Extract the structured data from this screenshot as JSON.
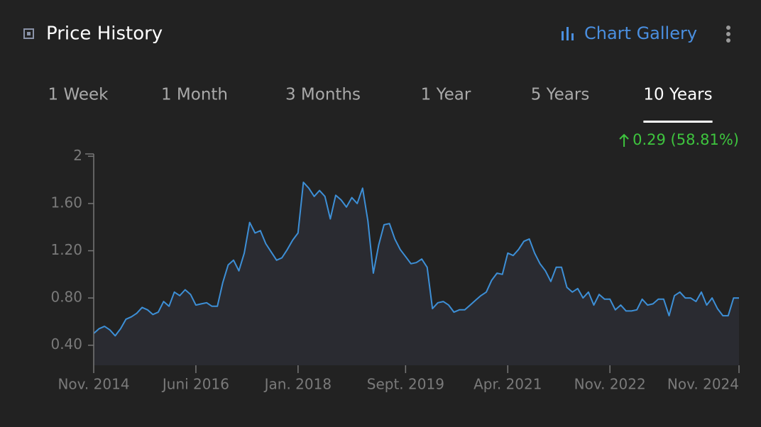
{
  "header": {
    "title": "Price History",
    "link": "Chart Gallery"
  },
  "tabs": [
    "1 Week",
    "1 Month",
    "3 Months",
    "1 Year",
    "5 Years",
    "10 Years"
  ],
  "selected_tab": 5,
  "change": "0.29 (58.81%)",
  "chart_data": {
    "type": "line",
    "color": "#3d8fd6",
    "x": [
      "2014-11",
      "2014-12",
      "2015-01",
      "2015-02",
      "2015-03",
      "2015-04",
      "2015-05",
      "2015-06",
      "2015-07",
      "2015-08",
      "2015-09",
      "2015-10",
      "2015-11",
      "2015-12",
      "2016-01",
      "2016-02",
      "2016-03",
      "2016-04",
      "2016-05",
      "2016-06",
      "2016-07",
      "2016-08",
      "2016-09",
      "2016-10",
      "2016-11",
      "2016-12",
      "2017-01",
      "2017-02",
      "2017-03",
      "2017-04",
      "2017-05",
      "2017-06",
      "2017-07",
      "2017-08",
      "2017-09",
      "2017-10",
      "2017-11",
      "2017-12",
      "2018-01",
      "2018-02",
      "2018-03",
      "2018-04",
      "2018-05",
      "2018-06",
      "2018-07",
      "2018-08",
      "2018-09",
      "2018-10",
      "2018-11",
      "2018-12",
      "2019-01",
      "2019-02",
      "2019-03",
      "2019-04",
      "2019-05",
      "2019-06",
      "2019-07",
      "2019-08",
      "2019-09",
      "2019-10",
      "2019-11",
      "2019-12",
      "2020-01",
      "2020-02",
      "2020-03",
      "2020-04",
      "2020-05",
      "2020-06",
      "2020-07",
      "2020-08",
      "2020-09",
      "2020-10",
      "2020-11",
      "2020-12",
      "2021-01",
      "2021-02",
      "2021-03",
      "2021-04",
      "2021-05",
      "2021-06",
      "2021-07",
      "2021-08",
      "2021-09",
      "2021-10",
      "2021-11",
      "2021-12",
      "2022-01",
      "2022-02",
      "2022-03",
      "2022-04",
      "2022-05",
      "2022-06",
      "2022-07",
      "2022-08",
      "2022-09",
      "2022-10",
      "2022-11",
      "2022-12",
      "2023-01",
      "2023-02",
      "2023-03",
      "2023-04",
      "2023-05",
      "2023-06",
      "2023-07",
      "2023-08",
      "2023-09",
      "2023-10",
      "2023-11",
      "2023-12",
      "2024-01",
      "2024-02",
      "2024-03",
      "2024-04",
      "2024-05",
      "2024-06",
      "2024-07",
      "2024-08",
      "2024-09",
      "2024-10",
      "2024-11"
    ],
    "values": [
      0.5,
      0.54,
      0.56,
      0.53,
      0.48,
      0.54,
      0.62,
      0.64,
      0.67,
      0.72,
      0.7,
      0.66,
      0.68,
      0.77,
      0.73,
      0.85,
      0.82,
      0.87,
      0.83,
      0.74,
      0.75,
      0.76,
      0.73,
      0.73,
      0.93,
      1.08,
      1.12,
      1.03,
      1.18,
      1.44,
      1.35,
      1.37,
      1.26,
      1.19,
      1.12,
      1.14,
      1.21,
      1.29,
      1.35,
      1.78,
      1.73,
      1.66,
      1.71,
      1.66,
      1.47,
      1.67,
      1.63,
      1.57,
      1.65,
      1.6,
      1.73,
      1.45,
      1.01,
      1.25,
      1.42,
      1.43,
      1.3,
      1.21,
      1.15,
      1.09,
      1.1,
      1.13,
      1.06,
      0.71,
      0.76,
      0.77,
      0.74,
      0.68,
      0.7,
      0.7,
      0.74,
      0.78,
      0.82,
      0.85,
      0.95,
      1.01,
      1.0,
      1.18,
      1.16,
      1.21,
      1.28,
      1.3,
      1.18,
      1.09,
      1.03,
      0.94,
      1.06,
      1.06,
      0.89,
      0.85,
      0.88,
      0.8,
      0.85,
      0.74,
      0.83,
      0.79,
      0.79,
      0.7,
      0.74,
      0.69,
      0.69,
      0.7,
      0.79,
      0.74,
      0.75,
      0.79,
      0.79,
      0.65,
      0.82,
      0.85,
      0.8,
      0.8,
      0.77,
      0.85,
      0.74,
      0.8,
      0.71,
      0.65,
      0.65,
      0.8,
      0.8
    ],
    "xlim": [
      "2014-11",
      "2024-11"
    ],
    "xticks": [
      {
        "value": "2014-11",
        "label": "Nov. 2014"
      },
      {
        "value": "2016-06",
        "label": "Juni 2016"
      },
      {
        "value": "2018-01",
        "label": "Jan. 2018"
      },
      {
        "value": "2019-09",
        "label": "Sept. 2019"
      },
      {
        "value": "2021-04",
        "label": "Apr. 2021"
      },
      {
        "value": "2022-11",
        "label": "Nov. 2022"
      },
      {
        "value": "2024-11",
        "label": "Nov. 2024"
      }
    ],
    "ylim": [
      0.23,
      2.02
    ],
    "yticks": [
      {
        "value": 0.4,
        "label": "0.40"
      },
      {
        "value": 0.8,
        "label": "0.80"
      },
      {
        "value": 1.2,
        "label": "1.20"
      },
      {
        "value": 1.6,
        "label": "1.60"
      },
      2
    ]
  }
}
